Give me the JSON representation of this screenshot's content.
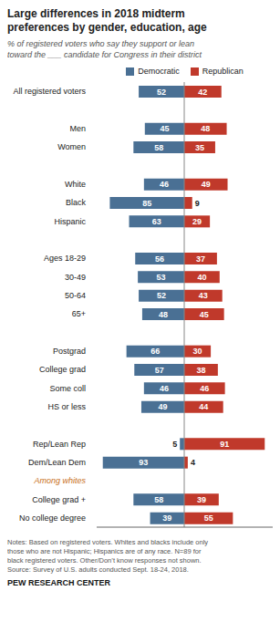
{
  "chart_data": {
    "type": "bar",
    "orientation": "horizontal",
    "title": "Large differences in 2018 midterm\npreferences by gender, education, age",
    "subtitle": "% of registered voters who say they support or lean\ntoward the ___ candidate for Congress in their district",
    "categories": [
      "All registered voters",
      "Men",
      "Women",
      "White",
      "Black",
      "Hispanic",
      "Ages 18-29",
      "30-49",
      "50-64",
      "65+",
      "Postgrad",
      "College grad",
      "Some coll",
      "HS or less",
      "Rep/Lean Rep",
      "Dem/Lean Dem",
      "College grad +",
      "No college degree"
    ],
    "series": [
      {
        "name": "Democratic",
        "color": "#4a7094",
        "values": [
          52,
          45,
          58,
          46,
          85,
          63,
          56,
          53,
          52,
          48,
          66,
          57,
          46,
          49,
          5,
          93,
          58,
          39
        ]
      },
      {
        "name": "Republican",
        "color": "#c0392b",
        "values": [
          42,
          48,
          35,
          49,
          9,
          29,
          37,
          40,
          43,
          45,
          30,
          38,
          46,
          44,
          91,
          4,
          39,
          55
        ]
      }
    ],
    "xlim": [
      0,
      100
    ],
    "data_labels": true,
    "tick_labels": "y",
    "grid": false,
    "legend": "top",
    "annotations": [
      {
        "text": "Among whites",
        "color": "#c87020"
      }
    ],
    "notes": "Notes: Based on registered voters. Whites and blacks include only\nthose who are not Hispanic; Hispanics are of any race. N=89 for\nblack registered voters. Other/Don’t know responses not shown.\nSource: Survey of U.S. adults conducted Sept. 18-24, 2018.",
    "source": "PEW RESEARCH CENTER"
  }
}
